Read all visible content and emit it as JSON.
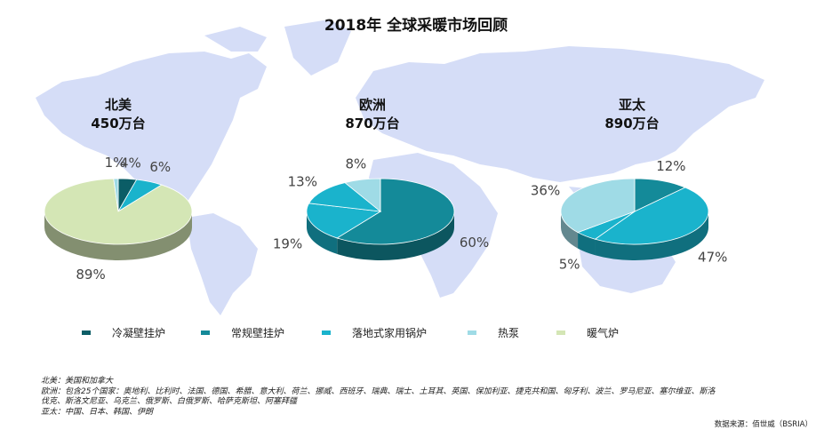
{
  "title": "2018年 全球采暖市场回顾",
  "colors": {
    "condensing": "#0b5d66",
    "conventional": "#148a99",
    "floor_standing": "#1ab3cc",
    "heat_pump": "#9fdbe6",
    "furnace": "#d4e6b5"
  },
  "legend": [
    {
      "key": "condensing",
      "label": "冷凝壁挂炉"
    },
    {
      "key": "conventional",
      "label": "常规壁挂炉"
    },
    {
      "key": "floor_standing",
      "label": "落地式家用锅炉"
    },
    {
      "key": "heat_pump",
      "label": "热泵"
    },
    {
      "key": "furnace",
      "label": "暖气炉"
    }
  ],
  "chart_data": [
    {
      "type": "pie",
      "title": "北美",
      "subtitle": "450万台",
      "slices": [
        {
          "key": "condensing",
          "value": 4,
          "label": "4%"
        },
        {
          "key": "floor_standing",
          "value": 6,
          "label": "6%"
        },
        {
          "key": "furnace",
          "value": 89,
          "label": "89%"
        },
        {
          "key": "heat_pump",
          "value": 1,
          "label": "1%"
        }
      ]
    },
    {
      "type": "pie",
      "title": "欧洲",
      "subtitle": "870万台",
      "slices": [
        {
          "key": "conventional",
          "value": 60,
          "label": "60%"
        },
        {
          "key": "floor_standing",
          "value": 19,
          "label": "19%"
        },
        {
          "key": "floor_standing",
          "value": 13,
          "label": "13%"
        },
        {
          "key": "heat_pump",
          "value": 8,
          "label": "8%"
        }
      ]
    },
    {
      "type": "pie",
      "title": "亚太",
      "subtitle": "890万台",
      "slices": [
        {
          "key": "conventional",
          "value": 12,
          "label": "12%"
        },
        {
          "key": "floor_standing",
          "value": 47,
          "label": "47%"
        },
        {
          "key": "floor_standing",
          "value": 5,
          "label": "5%"
        },
        {
          "key": "heat_pump",
          "value": 36,
          "label": "36%"
        }
      ]
    }
  ],
  "notes": [
    "北美：美国和加拿大",
    "欧洲：包含25个国家：奥地利、比利时、法国、德国、希腊、意大利、荷兰、挪威、西班牙、瑞典、瑞士、土耳其、英国、保加利亚、捷克共和国、匈牙利、波兰、罗马尼亚、塞尔维亚、斯洛伐克、斯洛文尼亚、乌克兰、俄罗斯、白俄罗斯、哈萨克斯坦、阿塞拜疆",
    "亚太：中国、日本、韩国、伊朗"
  ],
  "source": "数据来源：佰世威（BSRIA）"
}
